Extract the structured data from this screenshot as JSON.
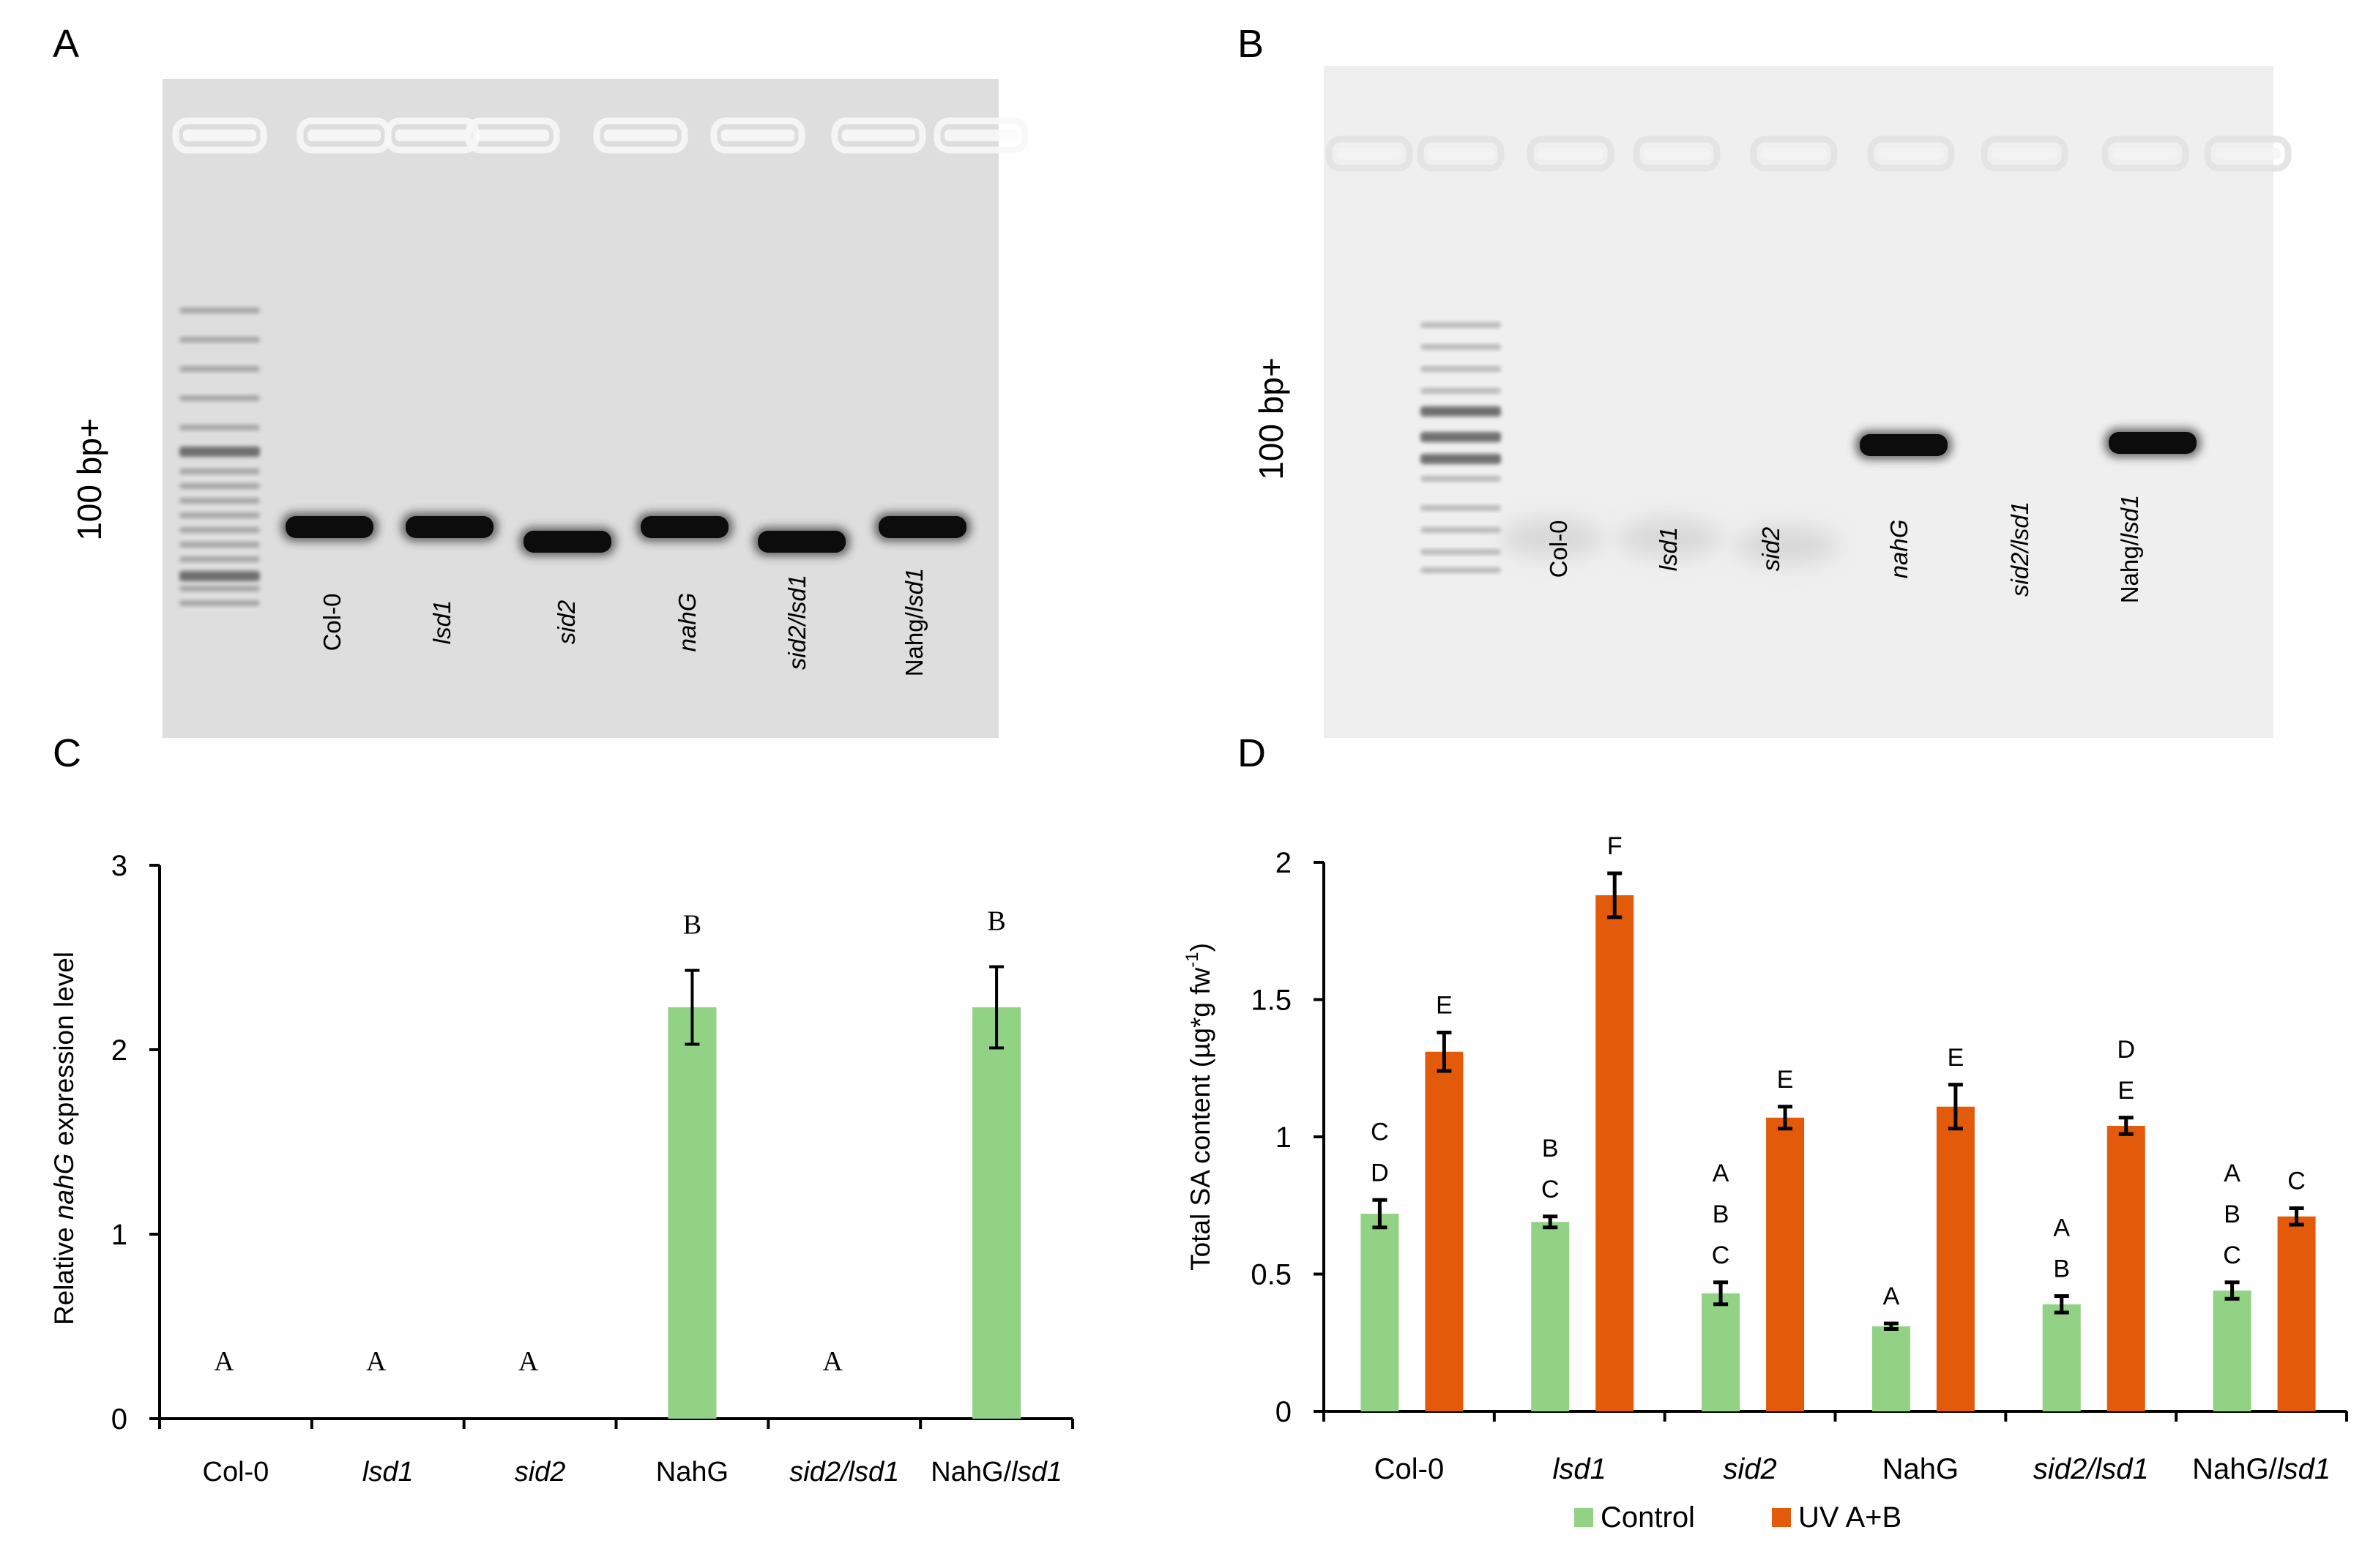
{
  "panel_labels": {
    "a": "A",
    "b": "B",
    "c": "C",
    "d": "D"
  },
  "gel_a": {
    "marker_label": "100 bp+",
    "lanes": [
      {
        "label": "Col-0",
        "italic": false
      },
      {
        "label": "lsd1",
        "italic": true
      },
      {
        "label": "sid2",
        "italic": true
      },
      {
        "label": "nahG",
        "italic": true
      },
      {
        "label": "sid2/lsd1",
        "italic": true
      },
      {
        "label": "Nahg/lsd1",
        "italic": "partial",
        "prefix": "Nahg/",
        "suffix": "lsd1"
      }
    ]
  },
  "gel_b": {
    "marker_label": "100 bp+",
    "lanes": [
      {
        "label": "Col-0",
        "italic": false
      },
      {
        "label": "lsd1",
        "italic": true
      },
      {
        "label": "sid2",
        "italic": true
      },
      {
        "label": "nahG",
        "italic": true
      },
      {
        "label": "sid2/lsd1",
        "italic": true
      },
      {
        "label": "Nahg/lsd1",
        "italic": "partial",
        "prefix": "Nahg/",
        "suffix": "lsd1"
      }
    ]
  },
  "colors": {
    "green": "#92d284",
    "orange": "#e35b0a",
    "gel_a_bg": "#dedede",
    "gel_b_bg": "#efefef",
    "band_dark": "#0c0c0c"
  },
  "chart_data": [
    {
      "type": "bar",
      "panel": "C",
      "title": "",
      "ylabel_prefix": "Relative ",
      "ylabel_italic": "nahG",
      "ylabel_suffix": " expression level",
      "ylim": [
        0,
        3
      ],
      "yticks": [
        "0",
        "1",
        "2",
        "3"
      ],
      "categories": [
        {
          "label": "Col-0",
          "italic": false
        },
        {
          "label": "lsd1",
          "italic": true
        },
        {
          "label": "sid2",
          "italic": true
        },
        {
          "label": "NahG",
          "italic": false
        },
        {
          "label": "sid2/lsd1",
          "italic": true
        },
        {
          "label": "NahG/lsd1",
          "italic": "partial",
          "prefix": "NahG/",
          "suffix": "lsd1"
        }
      ],
      "values": [
        0,
        0,
        0,
        2.23,
        0,
        2.23
      ],
      "errors": [
        0,
        0,
        0,
        0.2,
        0,
        0.22
      ],
      "letters": [
        "A",
        "A",
        "A",
        "B",
        "A",
        "B"
      ],
      "color": "#92d284"
    },
    {
      "type": "bar",
      "panel": "D",
      "title": "",
      "ylabel": "Total SA content (µg*g fw",
      "ylabel_sup": "-1",
      "ylabel_end": ")",
      "ylim": [
        0,
        2
      ],
      "yticks": [
        "0",
        "0.5",
        "1",
        "1.5",
        "2"
      ],
      "categories": [
        {
          "label": "Col-0",
          "italic": false
        },
        {
          "label": "lsd1",
          "italic": true
        },
        {
          "label": "sid2",
          "italic": true
        },
        {
          "label": "NahG",
          "italic": false
        },
        {
          "label": "sid2/lsd1",
          "italic": true
        },
        {
          "label": "NahG/lsd1",
          "italic": "partial",
          "prefix": "NahG/",
          "suffix": "lsd1"
        }
      ],
      "series": [
        {
          "name": "Control",
          "color": "#92d284",
          "values": [
            0.72,
            0.69,
            0.43,
            0.31,
            0.39,
            0.44
          ],
          "errors": [
            0.05,
            0.02,
            0.04,
            0.01,
            0.03,
            0.03
          ],
          "letters": [
            [
              "C",
              "D"
            ],
            [
              "B",
              "C"
            ],
            [
              "A",
              "B",
              "C"
            ],
            [
              "A"
            ],
            [
              "A",
              "B"
            ],
            [
              "A",
              "B",
              "C"
            ]
          ]
        },
        {
          "name": "UV A+B",
          "color": "#e35b0a",
          "values": [
            1.31,
            1.88,
            1.07,
            1.11,
            1.04,
            0.71
          ],
          "errors": [
            0.07,
            0.08,
            0.04,
            0.08,
            0.03,
            0.03
          ],
          "letters": [
            [
              "E"
            ],
            [
              "F"
            ],
            [
              "E"
            ],
            [
              "E"
            ],
            [
              "D",
              "E"
            ],
            [
              "C"
            ]
          ]
        }
      ],
      "legend": "bottom"
    }
  ]
}
